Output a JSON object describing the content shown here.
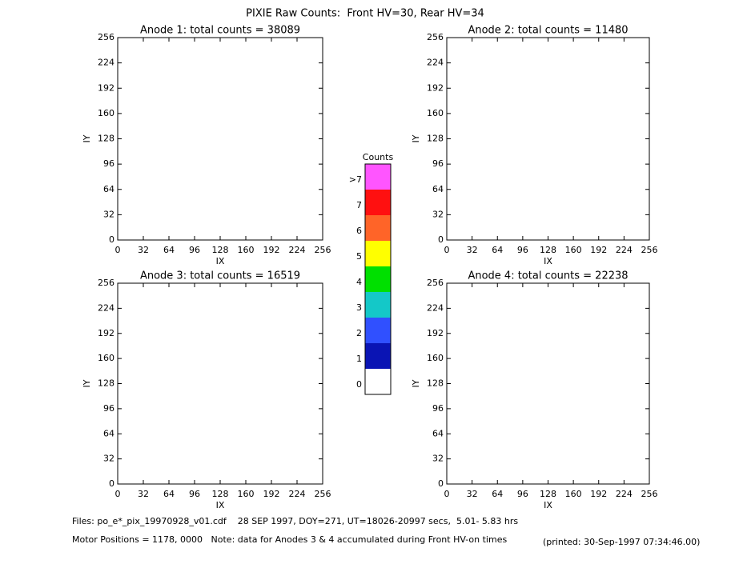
{
  "title": "PIXIE Raw Counts:  Front HV=30, Rear HV=34",
  "chart_data": [
    {
      "type": "heatmap",
      "title": "Anode 1: total counts = 38089",
      "xlabel": "IX",
      "ylabel": "IY",
      "xlim": [
        0,
        256
      ],
      "ylim": [
        0,
        256
      ],
      "xticks": [
        0,
        32,
        64,
        96,
        128,
        160,
        192,
        224,
        256
      ],
      "yticks": [
        0,
        32,
        64,
        96,
        128,
        160,
        192,
        224,
        256
      ]
    },
    {
      "type": "heatmap",
      "title": "Anode 2: total counts = 11480",
      "xlabel": "IX",
      "ylabel": "IY",
      "xlim": [
        0,
        256
      ],
      "ylim": [
        0,
        256
      ],
      "xticks": [
        0,
        32,
        64,
        96,
        128,
        160,
        192,
        224,
        256
      ],
      "yticks": [
        0,
        32,
        64,
        96,
        128,
        160,
        192,
        224,
        256
      ]
    },
    {
      "type": "heatmap",
      "title": "Anode 3: total counts = 16519",
      "xlabel": "IX",
      "ylabel": "IY",
      "xlim": [
        0,
        256
      ],
      "ylim": [
        0,
        256
      ],
      "xticks": [
        0,
        32,
        64,
        96,
        128,
        160,
        192,
        224,
        256
      ],
      "yticks": [
        0,
        32,
        64,
        96,
        128,
        160,
        192,
        224,
        256
      ]
    },
    {
      "type": "heatmap",
      "title": "Anode 4: total counts = 22238",
      "xlabel": "IX",
      "ylabel": "IY",
      "xlim": [
        0,
        256
      ],
      "ylim": [
        0,
        256
      ],
      "xticks": [
        0,
        32,
        64,
        96,
        128,
        160,
        192,
        224,
        256
      ],
      "yticks": [
        0,
        32,
        64,
        96,
        128,
        160,
        192,
        224,
        256
      ]
    }
  ],
  "colorbar": {
    "title": "Counts",
    "levels": [
      {
        "label": "0",
        "color": "#ffffff"
      },
      {
        "label": "1",
        "color": "#0a14b4"
      },
      {
        "label": "2",
        "color": "#3050ff"
      },
      {
        "label": "3",
        "color": "#14c8c8"
      },
      {
        "label": "4",
        "color": "#00e000"
      },
      {
        "label": "5",
        "color": "#ffff00"
      },
      {
        "label": "6",
        "color": "#ff6428"
      },
      {
        "label": "7",
        "color": "#ff1010"
      },
      {
        "label": ">7",
        "color": "#ff55ff"
      }
    ]
  },
  "footer": {
    "files": "Files: po_e*_pix_19970928_v01.cdf    28 SEP 1997, DOY=271, UT=18026-20997 secs,  5.01- 5.83 hrs",
    "motor": "Motor Positions = 1178, 0000   Note: data for Anodes 3 & 4 accumulated during Front HV-on times",
    "printed": "(printed: 30-Sep-1997 07:34:46.00)"
  }
}
